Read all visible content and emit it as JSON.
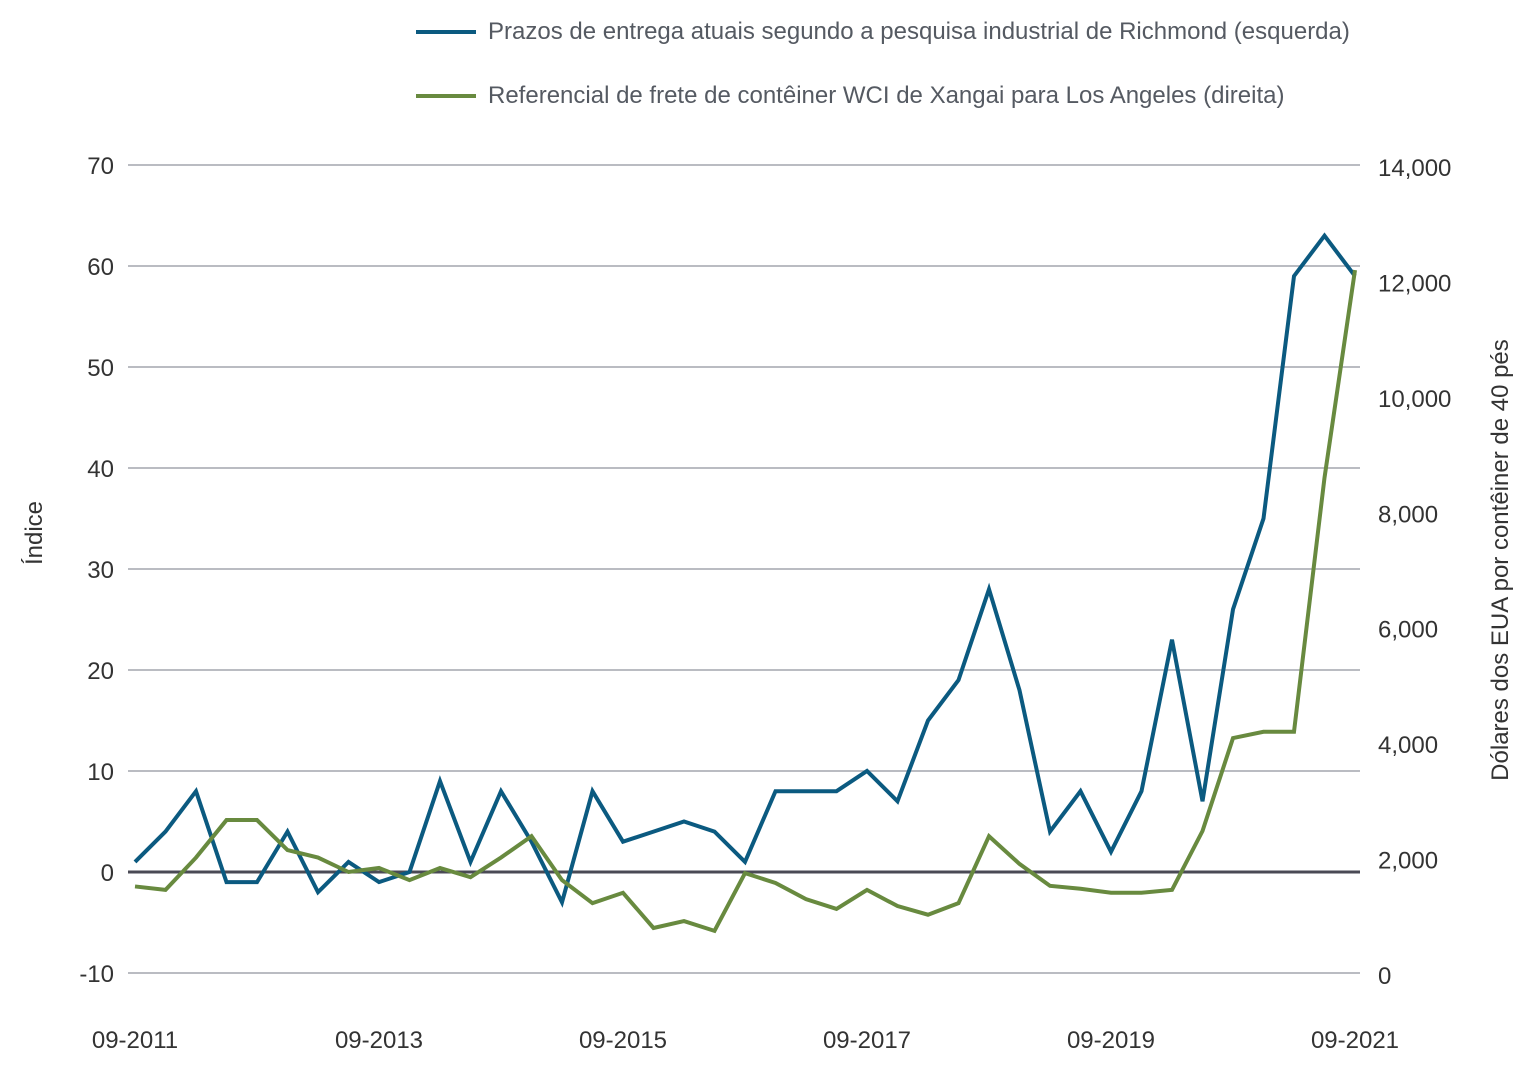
{
  "chart_data": {
    "type": "line",
    "x": [
      "09-2011",
      "12-2011",
      "03-2012",
      "06-2012",
      "09-2012",
      "12-2012",
      "03-2013",
      "06-2013",
      "09-2013",
      "12-2013",
      "03-2014",
      "06-2014",
      "09-2014",
      "12-2014",
      "03-2015",
      "06-2015",
      "09-2015",
      "12-2015",
      "03-2016",
      "06-2016",
      "09-2016",
      "12-2016",
      "03-2017",
      "06-2017",
      "09-2017",
      "12-2017",
      "03-2018",
      "06-2018",
      "09-2018",
      "12-2018",
      "03-2019",
      "06-2019",
      "09-2019",
      "12-2019",
      "03-2020",
      "06-2020",
      "09-2020",
      "12-2020",
      "03-2021",
      "06-2021",
      "09-2021"
    ],
    "x_tick_labels": [
      "09-2011",
      "09-2013",
      "09-2015",
      "09-2017",
      "09-2019",
      "09-2021"
    ],
    "ylabel": "Índice",
    "y2label": "Dólares dos EUA por contêiner de 40 pés",
    "ylim": [
      -10,
      70
    ],
    "y_ticks": [
      "70",
      "60",
      "50",
      "40",
      "30",
      "20",
      "10",
      "0",
      "-10"
    ],
    "y2lim": [
      0,
      14000
    ],
    "y2_ticks": [
      "14,000",
      "12,000",
      "10,000",
      "8,000",
      "6,000",
      "4,000",
      "2,000",
      "0"
    ],
    "grid": true,
    "legend_position": "top",
    "series": [
      {
        "name": "Prazos de entrega atuais segundo a pesquisa industrial de Richmond (esquerda)",
        "axis": "left",
        "color": "#0b5a80",
        "values": [
          1,
          4,
          8,
          -1,
          -1,
          4,
          -2,
          1,
          -1,
          0,
          9,
          1,
          8,
          3,
          -3,
          8,
          3,
          4,
          5,
          4,
          1,
          8,
          8,
          8,
          10,
          7,
          15,
          19,
          28,
          18,
          4,
          8,
          2,
          8,
          23,
          7,
          26,
          35,
          59,
          63,
          59
        ]
      },
      {
        "name": "Referencial de frete de contêiner WCI de Xangai para Los Angeles (direita)",
        "axis": "right",
        "color": "#688a3f",
        "values": [
          1500,
          1440,
          2000,
          2650,
          2650,
          2130,
          2000,
          1750,
          1820,
          1610,
          1820,
          1660,
          2000,
          2370,
          1610,
          1210,
          1390,
          780,
          900,
          730,
          1730,
          1560,
          1280,
          1110,
          1440,
          1160,
          1010,
          1210,
          2370,
          1890,
          1510,
          1460,
          1390,
          1390,
          1440,
          2460,
          4070,
          4180,
          4180,
          8580,
          12180
        ]
      }
    ]
  }
}
